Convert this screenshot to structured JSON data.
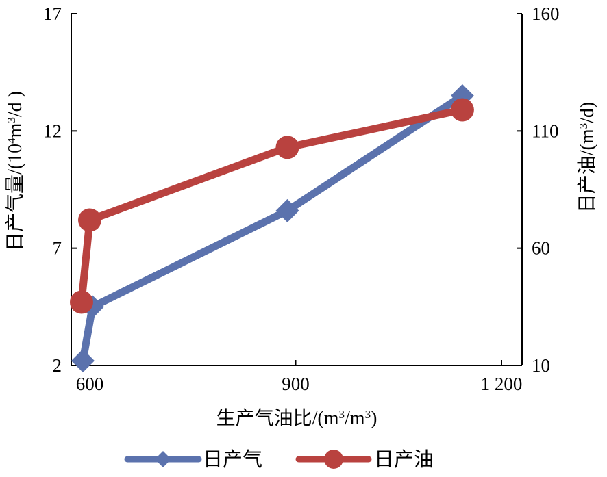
{
  "chart_data": {
    "type": "line",
    "x": [
      600,
      604,
      888,
      1143
    ],
    "xlim": [
      600,
      1200
    ],
    "x_ticks": [
      600,
      900,
      1200
    ],
    "x_tick_labels": [
      "600",
      "900",
      "1 200"
    ],
    "xlabel": {
      "main": "生产气油比/(m",
      "sup1": "3",
      "mid": "/m",
      "sup2": "3",
      "end": ")"
    },
    "y_left": {
      "lim": [
        2,
        17
      ],
      "ticks": [
        2,
        7,
        12,
        17
      ],
      "tick_labels": [
        "2",
        "7",
        "12",
        "17"
      ],
      "label": {
        "main": "日产气量/(10",
        "sup1": "4",
        "mid": "m",
        "sup2": "3",
        "end": "/d )"
      }
    },
    "y_right": {
      "lim": [
        10,
        160
      ],
      "ticks": [
        10,
        60,
        110,
        160
      ],
      "tick_labels": [
        "10",
        "60",
        "110",
        "160"
      ],
      "label": {
        "main": "日产油/(m",
        "sup1": "3",
        "end": "/d)"
      }
    },
    "series": [
      {
        "name": "日产气",
        "axis": "left",
        "color": "#5b72ad",
        "marker": "diamond",
        "points": [
          {
            "x": 590,
            "y": 2.2
          },
          {
            "x": 604,
            "y": 4.5
          },
          {
            "x": 888,
            "y": 8.6
          },
          {
            "x": 1143,
            "y": 13.5
          }
        ]
      },
      {
        "name": "日产油",
        "axis": "right",
        "color": "#b9423f",
        "marker": "circle",
        "points": [
          {
            "x": 588,
            "y": 37
          },
          {
            "x": 600,
            "y": 72
          },
          {
            "x": 888,
            "y": 103
          },
          {
            "x": 1143,
            "y": 119
          }
        ]
      }
    ],
    "legend": {
      "position": "bottom",
      "entries": [
        "日产气",
        "日产油"
      ]
    },
    "grid": false
  }
}
